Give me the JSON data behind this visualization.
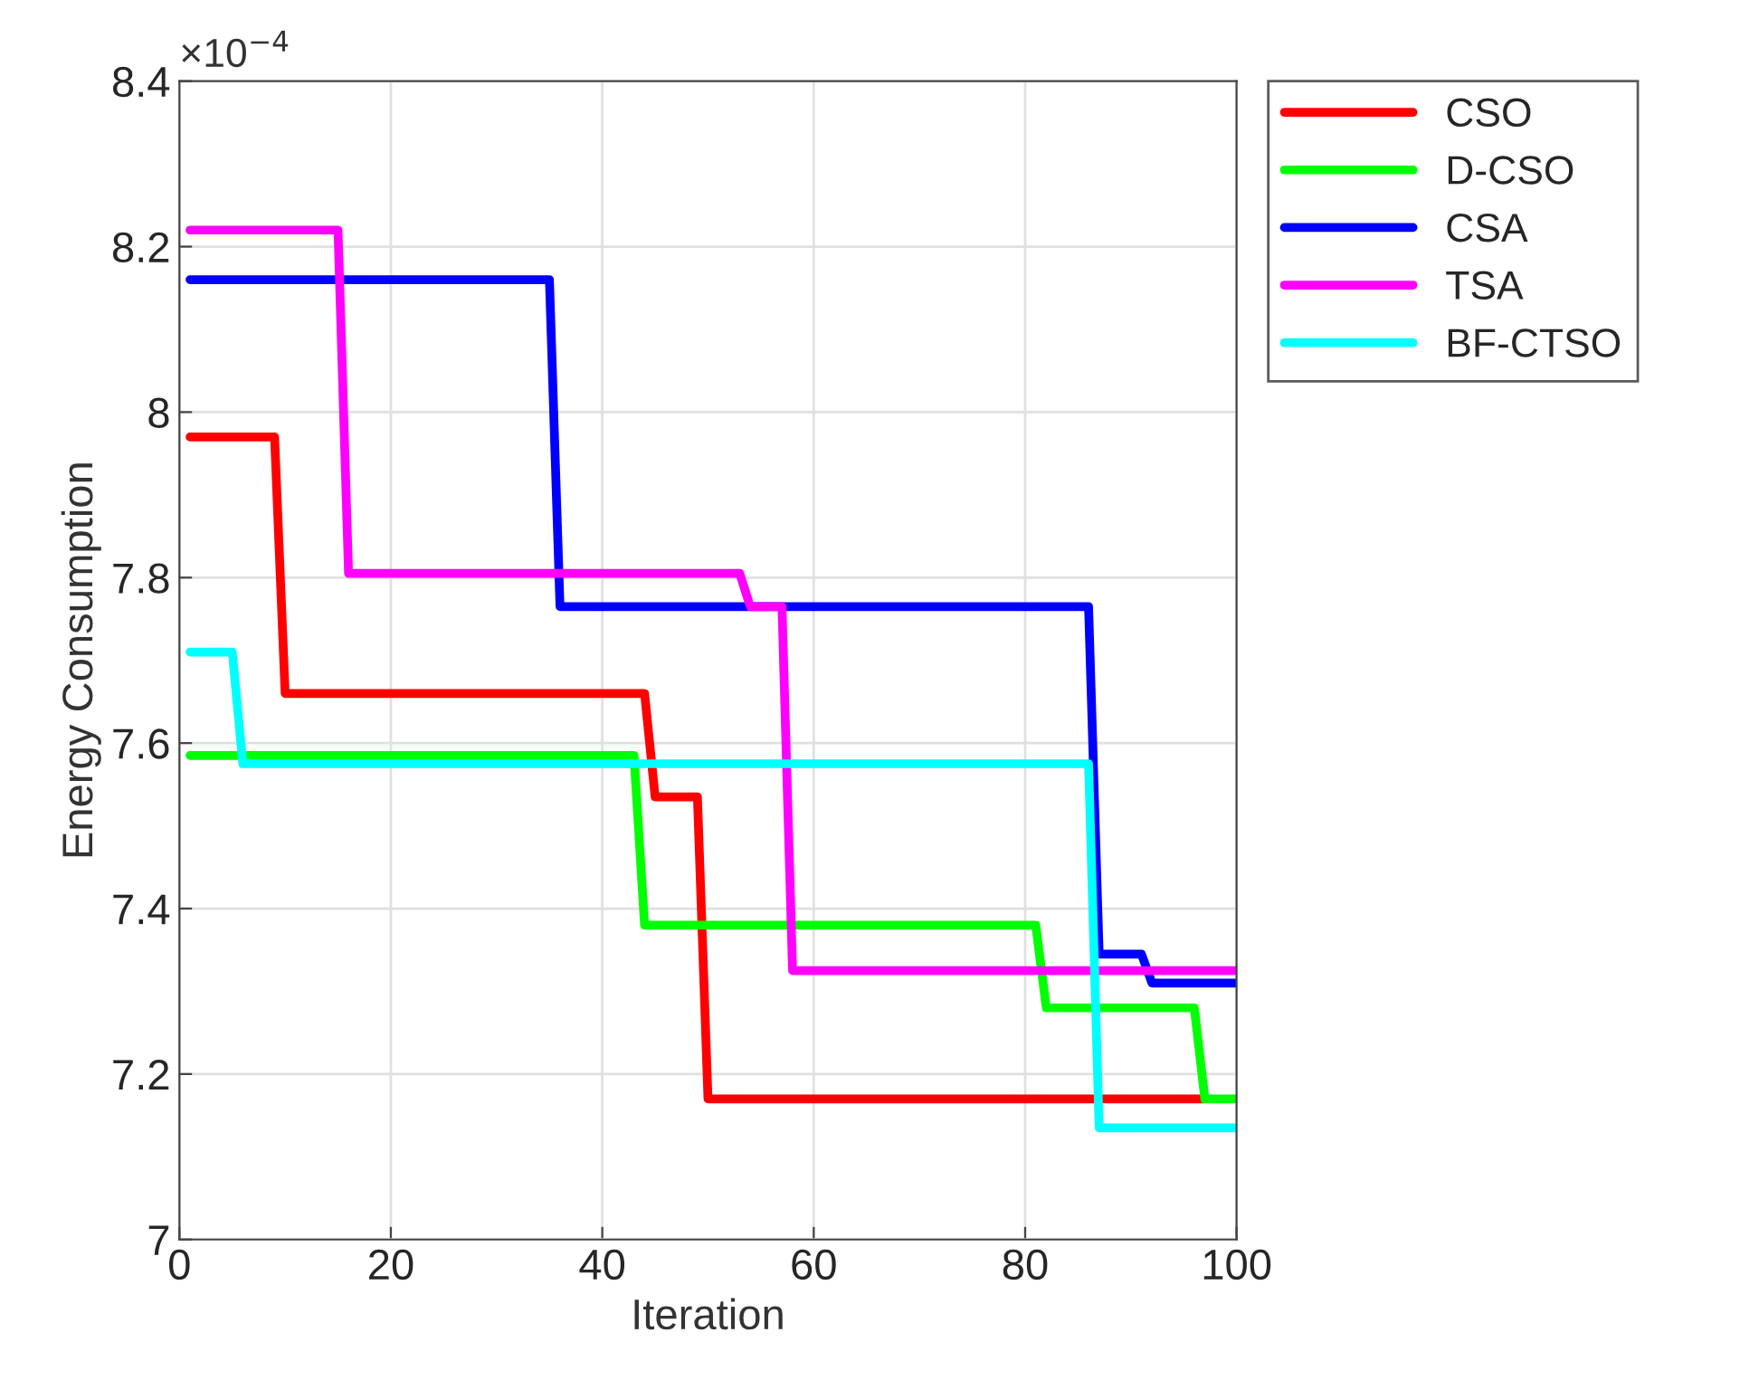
{
  "chart_data": {
    "type": "line",
    "xlabel": "Iteration",
    "ylabel": "Energy Consumption",
    "annotations": [
      "×10$^{−4}$"
    ],
    "series": [
      {
        "name": "CSO",
        "color": "#ff0000",
        "x": [
          1,
          9,
          10,
          44,
          45,
          49,
          50,
          97
        ],
        "values": [
          7.97,
          7.97,
          7.66,
          7.66,
          7.535,
          7.535,
          7.17,
          7.17
        ]
      },
      {
        "name": "D-CSO",
        "color": "#00ff00",
        "x": [
          1,
          43,
          44,
          81,
          82,
          96,
          97,
          100
        ],
        "values": [
          7.585,
          7.585,
          7.38,
          7.38,
          7.28,
          7.28,
          7.17,
          7.17
        ]
      },
      {
        "name": "CSA",
        "color": "#0000ff",
        "x": [
          1,
          35,
          36,
          86,
          87,
          91,
          92,
          100
        ],
        "values": [
          8.16,
          8.16,
          7.765,
          7.765,
          7.345,
          7.345,
          7.31,
          7.31
        ]
      },
      {
        "name": "TSA",
        "color": "#ff00ff",
        "x": [
          1,
          15,
          16,
          53,
          54,
          57,
          58,
          100
        ],
        "values": [
          8.22,
          8.22,
          7.805,
          7.805,
          7.765,
          7.765,
          7.325,
          7.325
        ]
      },
      {
        "name": "BF-CTSO",
        "color": "#00ffff",
        "x": [
          1,
          5,
          6,
          86,
          87,
          100
        ],
        "values": [
          7.71,
          7.71,
          7.575,
          7.575,
          7.135,
          7.135
        ]
      }
    ],
    "xlim": [
      0,
      100
    ],
    "xticks": [
      0,
      20,
      40,
      60,
      80,
      100
    ],
    "ylim": [
      7,
      8.4
    ],
    "yticks": [
      7,
      7.2,
      7.4,
      7.6,
      7.8,
      8,
      8.2,
      8.4
    ],
    "grid": true,
    "legend": "top right",
    "line_style": "solid",
    "marker": "none"
  }
}
